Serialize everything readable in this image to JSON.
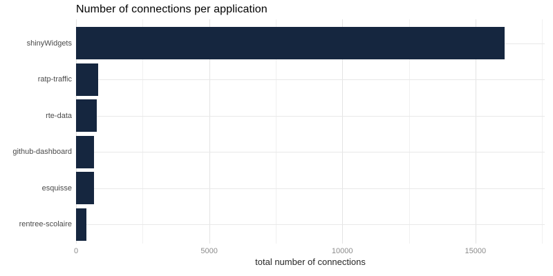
{
  "chart_data": {
    "type": "bar",
    "orientation": "horizontal",
    "title": "Number of connections per application",
    "xlabel": "total number of connections",
    "ylabel": "",
    "categories": [
      "shinyWidgets",
      "ratp-traffic",
      "rte-data",
      "github-dashboard",
      "esquisse",
      "rentree-scolaire"
    ],
    "values": [
      16100,
      820,
      770,
      675,
      665,
      380
    ],
    "xlim": [
      0,
      17600
    ],
    "x_major_ticks": [
      0,
      5000,
      10000,
      15000
    ],
    "x_minor_ticks": [
      2500,
      7500,
      12500,
      17500
    ],
    "grid": "major-and-minor-vertical, major-horizontal",
    "legend": "none",
    "bar_color": "#15263f",
    "background_color": "#ffffff",
    "major_grid_color": "#e3e3e3",
    "minor_grid_color": "#f0f0f0",
    "horizontal_grid_color": "#e8e8e8",
    "title_color": "#000000",
    "axis_title_color": "#262626",
    "tick_label_color": "#8b8b8b",
    "category_label_color": "#4a4a4a"
  }
}
